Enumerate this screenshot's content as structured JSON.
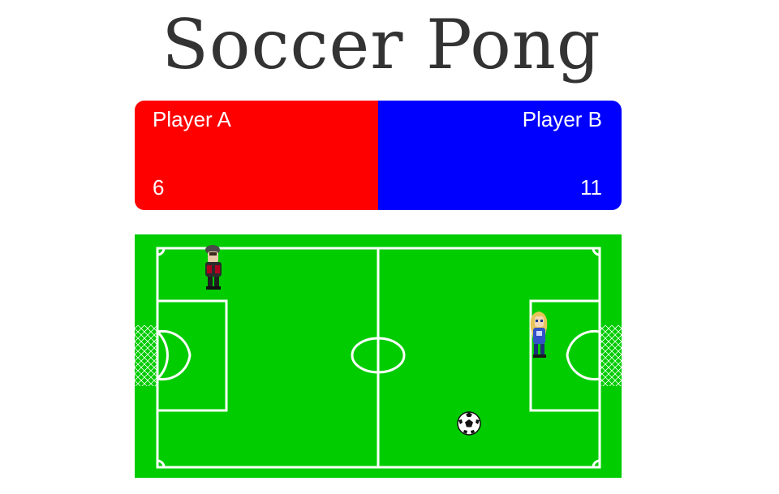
{
  "title": "Soccer Pong",
  "players": {
    "a": {
      "name": "Player A",
      "score": "6",
      "color": "#ff0000"
    },
    "b": {
      "name": "Player B",
      "score": "11",
      "color": "#0000ff"
    }
  },
  "field": {
    "grass_color": "#00cc00",
    "line_color": "#ffffff"
  },
  "sprites": {
    "player_a": "dark-haired player with red-black outfit",
    "player_b": "blonde player with blue outfit",
    "ball": "soccer-ball-icon"
  }
}
